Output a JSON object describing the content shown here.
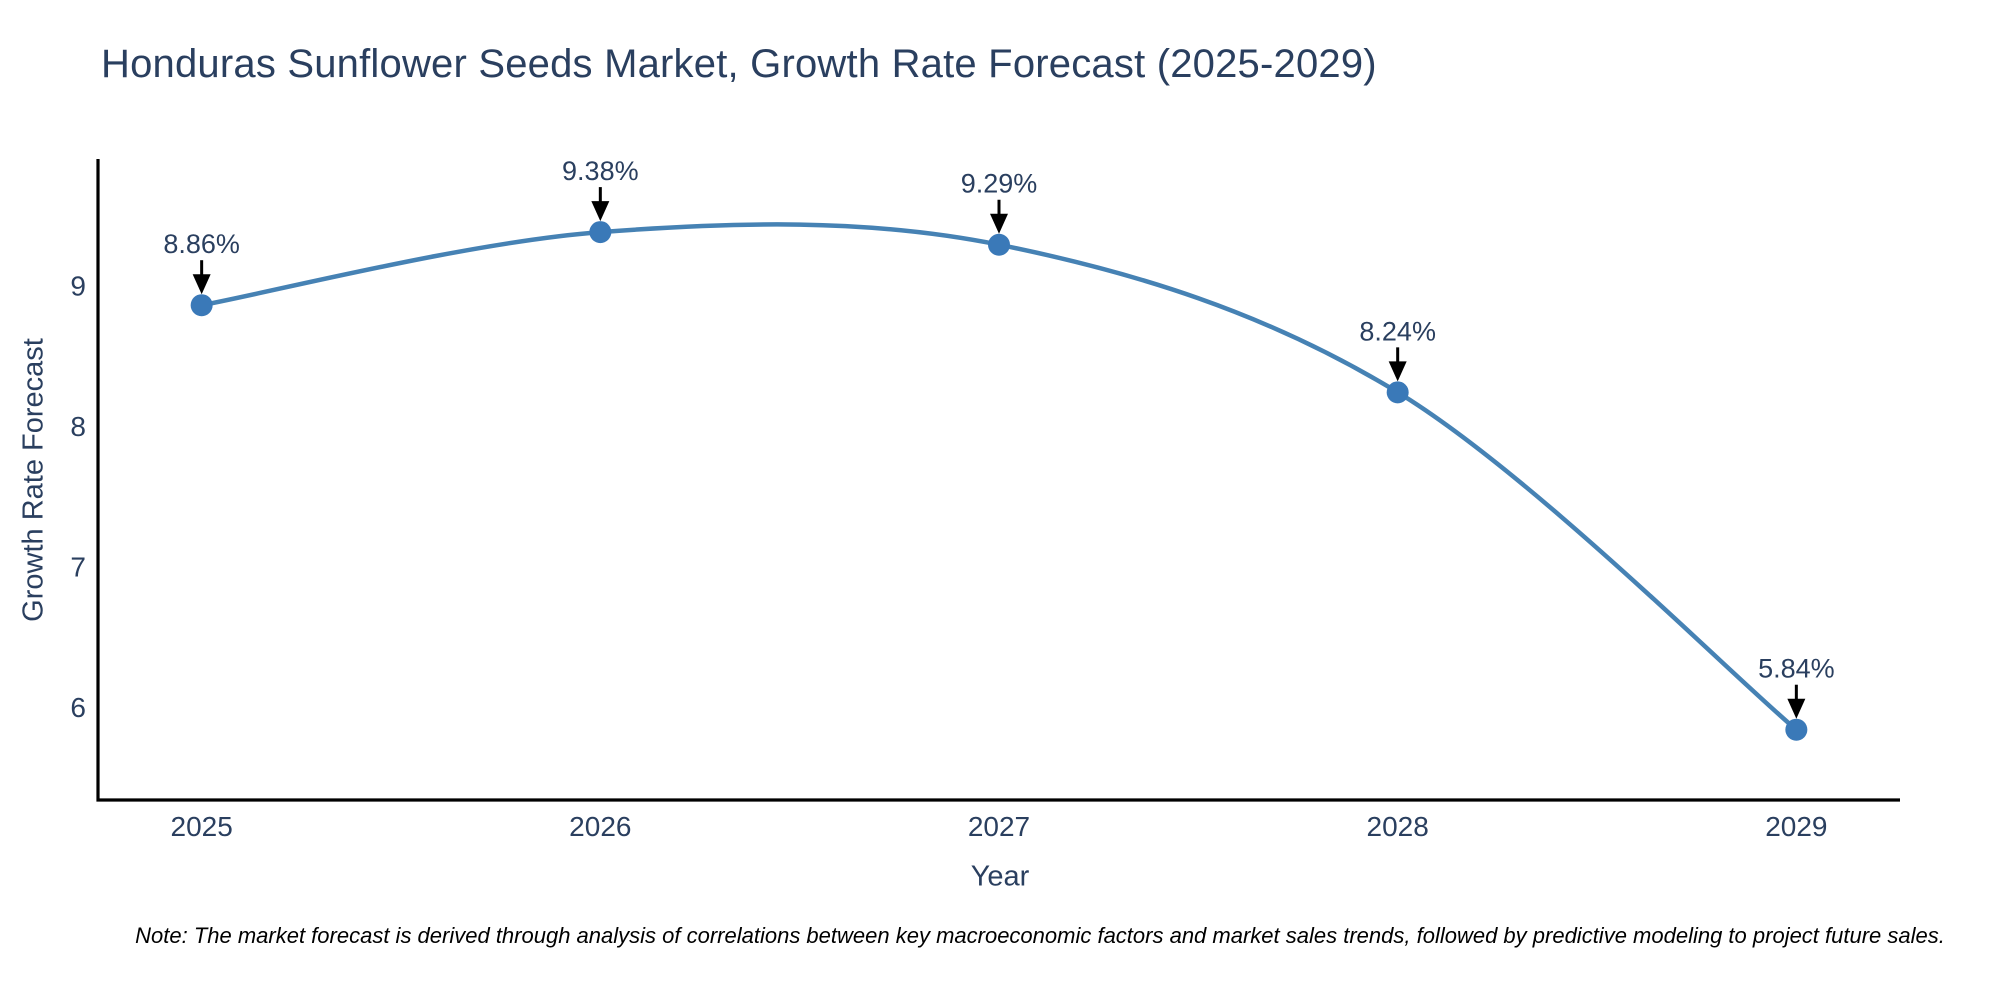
{
  "chart_data": {
    "type": "line",
    "title": "Honduras Sunflower Seeds Market, Growth Rate Forecast (2025-2029)",
    "xlabel": "Year",
    "ylabel": "Growth Rate Forecast",
    "x": [
      2025,
      2026,
      2027,
      2028,
      2029
    ],
    "y": [
      8.86,
      9.38,
      9.29,
      8.24,
      5.84
    ],
    "point_labels": [
      "8.86%",
      "9.38%",
      "9.29%",
      "8.24%",
      "5.84%"
    ],
    "xticks": [
      2025,
      2026,
      2027,
      2028,
      2029
    ],
    "yticks": [
      6,
      7,
      8,
      9
    ],
    "xlim": [
      2024.74,
      2029.26
    ],
    "ylim": [
      5.34,
      9.9
    ],
    "grid": false,
    "legend": "none",
    "line_shape": "spline",
    "colors": {
      "line": "#4682b4",
      "marker": "#3a79b8",
      "axis": "#000000",
      "text": "#2a3f5f",
      "annotation_arrow": "#000000",
      "background": "#ffffff"
    },
    "note": "Note: The market forecast is derived through analysis of correlations between key macroeconomic factors and market sales trends, followed by predictive modeling to project future sales."
  }
}
